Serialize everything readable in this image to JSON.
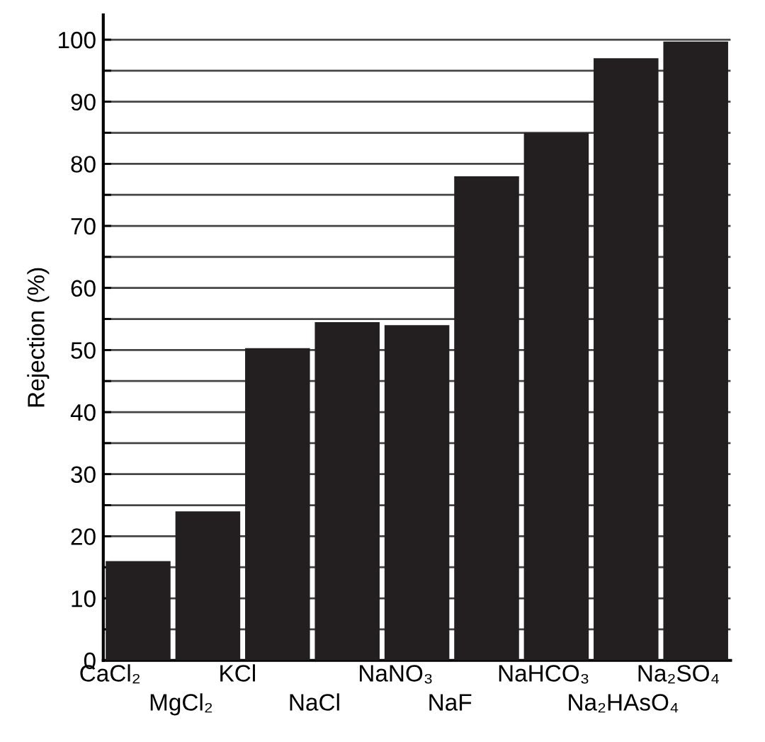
{
  "chart_data": {
    "type": "bar",
    "ylabel": "Rejection (%)",
    "categories": [
      "CaCl₂",
      "MgCl₂",
      "KCl",
      "NaCl",
      "NaNO₃",
      "NaF",
      "NaHCO₃",
      "Na₂HAsO₄",
      "Na₂SO₄"
    ],
    "values": [
      16,
      24,
      50.3,
      54.5,
      54,
      78,
      85,
      97,
      99.7
    ],
    "color": "#231f20",
    "ylim": [
      0,
      104
    ],
    "yticks": [
      0,
      {
        "value": 5,
        "label": null
      },
      10,
      {
        "value": 15,
        "label": null
      },
      20,
      {
        "value": 25,
        "label": null
      },
      30,
      {
        "value": 35,
        "label": null
      },
      40,
      {
        "value": 45,
        "label": null
      },
      50,
      {
        "value": 55,
        "label": null
      },
      60,
      {
        "value": 65,
        "label": null
      },
      70,
      {
        "value": 75,
        "label": null
      },
      80,
      {
        "value": 85,
        "label": null
      },
      90,
      {
        "value": 95,
        "label": null
      },
      100
    ],
    "grid": "y",
    "legend": false
  }
}
